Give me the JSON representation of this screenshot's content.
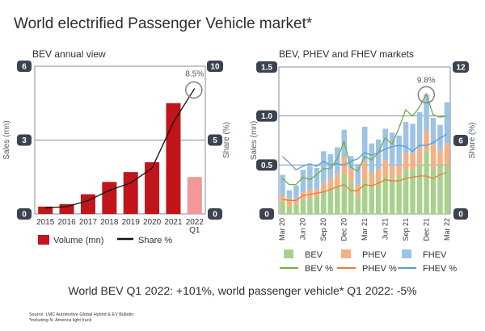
{
  "title": "World electrified Passenger Vehicle market*",
  "headline": "World BEV Q1 2022: +101%, world passenger vehicle* Q1 2022: -5%",
  "footnotes": {
    "source": "Source: LMC Automotive Global Hybrid & EV Bulletin",
    "note": "*including N. America light truck"
  },
  "colors": {
    "bev_volume": "#c0161b",
    "bev_volume_partial": "#f2989a",
    "share_line": "#111111",
    "bev": "#a9d18e",
    "phev": "#f4b183",
    "fhev": "#9dc3e6",
    "bev_line": "#70ad47",
    "phev_line": "#ed7d31",
    "fhev_line": "#5b9bd5",
    "axis_badge": "#3b4350",
    "grid": "#8a8f96"
  },
  "chart_data": [
    {
      "type": "bar",
      "title": "BEV annual view",
      "categories": [
        "2015",
        "2016",
        "2017",
        "2018",
        "2019",
        "2020",
        "2021",
        "2022\nQ1"
      ],
      "category_lines": [
        [
          "2015"
        ],
        [
          "2016"
        ],
        [
          "2017"
        ],
        [
          "2018"
        ],
        [
          "2019"
        ],
        [
          "2020"
        ],
        [
          "2021"
        ],
        [
          "2022",
          "Q1"
        ]
      ],
      "series": [
        {
          "name": "Volume (mn)",
          "axis": "left",
          "type": "bar",
          "values": [
            0.3,
            0.4,
            0.8,
            1.3,
            1.7,
            2.1,
            4.5,
            1.5
          ],
          "partial_last": true
        },
        {
          "name": "Share %",
          "axis": "right",
          "type": "line",
          "values": [
            0.4,
            0.5,
            0.9,
            1.6,
            2.1,
            3.1,
            6.2,
            8.5
          ]
        }
      ],
      "ylabel": "Sales (mn)",
      "ylabel_right": "Share (%)",
      "ylim": [
        0,
        6
      ],
      "yticks": [
        "0",
        "3",
        "6"
      ],
      "ylim_right": [
        0,
        10
      ],
      "yticks_right": [
        "0",
        "5",
        "10"
      ],
      "grid": true,
      "annotation": {
        "label": "8.5%",
        "category_index": 7,
        "series": "Share %"
      },
      "legend": {
        "position": "bottom",
        "items": [
          "Volume (mn)",
          "Share %"
        ]
      }
    },
    {
      "type": "bar",
      "stacked": true,
      "title": "BEV, PHEV and FHEV markets",
      "categories": [
        "Mar 20",
        "Apr 20",
        "May 20",
        "Jun 20",
        "Jul 20",
        "Aug 20",
        "Sep 20",
        "Oct 20",
        "Nov 20",
        "Dec 20",
        "Jan 21",
        "Feb 21",
        "Mar 21",
        "Apr 21",
        "May 21",
        "Jun 21",
        "Jul 21",
        "Aug 21",
        "Sep 21",
        "Oct 21",
        "Nov 21",
        "Dec 21",
        "Jan 22",
        "Feb 22",
        "Mar 22"
      ],
      "tick_labels": [
        "Mar 20",
        "Jun 20",
        "Sep 20",
        "Dec 20",
        "Mar 21",
        "Jun 21",
        "Sep 21",
        "Dec 21",
        "Mar 22"
      ],
      "series": [
        {
          "name": "BEV",
          "axis": "left",
          "type": "bar",
          "values": [
            0.13,
            0.07,
            0.1,
            0.15,
            0.16,
            0.18,
            0.23,
            0.26,
            0.28,
            0.41,
            0.32,
            0.18,
            0.34,
            0.28,
            0.3,
            0.38,
            0.35,
            0.39,
            0.46,
            0.45,
            0.51,
            0.64,
            0.46,
            0.5,
            0.5
          ]
        },
        {
          "name": "PHEV",
          "axis": "left",
          "type": "bar",
          "values": [
            0.06,
            0.09,
            0.05,
            0.07,
            0.09,
            0.07,
            0.08,
            0.1,
            0.13,
            0.17,
            0.14,
            0.12,
            0.19,
            0.14,
            0.16,
            0.17,
            0.14,
            0.11,
            0.16,
            0.17,
            0.16,
            0.21,
            0.25,
            0.15,
            0.22
          ]
        },
        {
          "name": "FHEV",
          "axis": "left",
          "type": "bar",
          "values": [
            0.21,
            0.08,
            0.14,
            0.23,
            0.24,
            0.22,
            0.33,
            0.25,
            0.27,
            0.28,
            0.13,
            0.21,
            0.36,
            0.3,
            0.3,
            0.32,
            0.34,
            0.3,
            0.32,
            0.3,
            0.37,
            0.37,
            0.27,
            0.26,
            0.42
          ]
        },
        {
          "name": "BEV %",
          "axis": "right",
          "type": "line",
          "values": [
            2.9,
            2.4,
            2.4,
            3.0,
            2.8,
            3.2,
            3.7,
            3.7,
            4.5,
            5.9,
            3.8,
            3.5,
            4.7,
            4.4,
            5.0,
            6.2,
            5.7,
            7.0,
            8.5,
            8.0,
            8.7,
            9.8,
            8.1,
            7.9,
            8.0
          ]
        },
        {
          "name": "PHEV %",
          "axis": "right",
          "type": "line",
          "values": [
            1.2,
            1.1,
            1.1,
            1.5,
            1.6,
            1.7,
            1.8,
            2.0,
            2.2,
            2.4,
            1.9,
            1.9,
            2.4,
            2.3,
            2.5,
            2.8,
            2.7,
            2.7,
            2.9,
            3.0,
            3.1,
            3.1,
            2.9,
            3.2,
            3.4
          ]
        },
        {
          "name": "FHEV %",
          "axis": "right",
          "type": "line",
          "values": [
            4.7,
            4.2,
            3.6,
            3.9,
            4.1,
            3.9,
            4.3,
            4.0,
            4.1,
            4.0,
            4.3,
            4.5,
            5.0,
            4.8,
            5.0,
            5.3,
            5.5,
            5.6,
            5.5,
            5.1,
            5.6,
            5.6,
            5.8,
            6.2,
            6.5
          ]
        }
      ],
      "ylabel": "Sales (mn)",
      "ylabel_right": "Share (%)",
      "ylim": [
        0,
        1.5
      ],
      "yticks": [
        "0",
        "0.5",
        "1.0",
        "1.5"
      ],
      "ylim_right": [
        0,
        12
      ],
      "yticks_right": [
        "0",
        "6",
        "12"
      ],
      "grid": true,
      "annotation": {
        "label": "9.8%",
        "category_index": 21,
        "series": "BEV %"
      },
      "legend": {
        "position": "bottom",
        "items": [
          "BEV",
          "PHEV",
          "FHEV",
          "BEV %",
          "PHEV %",
          "FHEV %"
        ]
      }
    }
  ]
}
